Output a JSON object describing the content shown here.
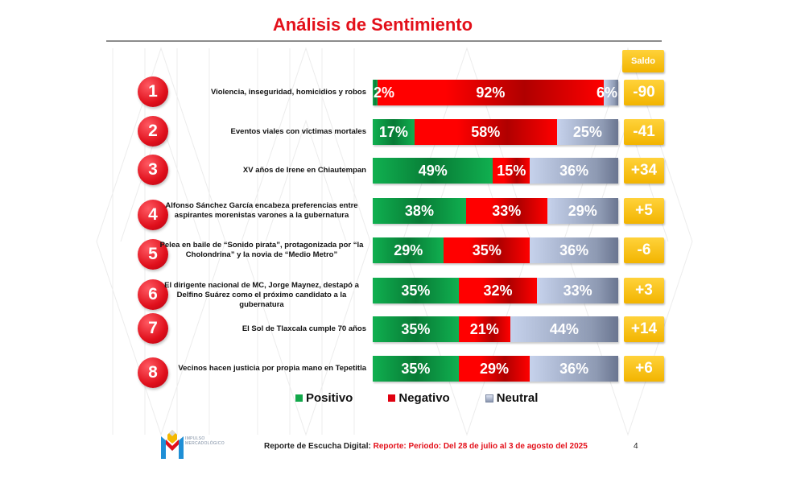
{
  "title": "Análisis de Sentimiento",
  "saldo_header": "Saldo",
  "colors": {
    "positive": "#10b050",
    "negative": "#ff0000",
    "neutral": "#aab5cf",
    "saldo": "#f5b800",
    "title": "#e3101a"
  },
  "chart_data": {
    "type": "bar",
    "subtype": "stacked-horizontal-100",
    "title": "Análisis de Sentimiento",
    "categories": [
      "Violencia, inseguridad, homicidios y robos",
      "Eventos viales con victimas mortales",
      "XV años de Irene en Chiautempan",
      "Alfonso Sánchez García encabeza preferencias entre aspirantes morenistas varones a la gubernatura",
      "Pelea en baile de “Sonido pirata”, protagonizada por “la Cholondrina” y la novia de “Medio Metro”",
      "El dirigente nacional de MC, Jorge Maynez, destapó a Delfino Suárez como el próximo candidato a la gubernatura",
      "El Sol de Tlaxcala cumple 70 años",
      "Vecinos hacen justicia por propia mano en Tepetitla"
    ],
    "series": [
      {
        "name": "Positivo",
        "values": [
          2,
          17,
          49,
          38,
          29,
          35,
          35,
          35
        ]
      },
      {
        "name": "Negativo",
        "values": [
          92,
          58,
          15,
          33,
          35,
          32,
          21,
          29
        ]
      },
      {
        "name": "Neutral",
        "values": [
          6,
          25,
          36,
          29,
          36,
          33,
          44,
          36
        ]
      }
    ],
    "saldo": [
      "-90",
      "-41",
      "+34",
      "+5",
      "-6",
      "+3",
      "+14",
      "+6"
    ],
    "xlim": [
      0,
      100
    ],
    "legend": "bottom",
    "grid": false
  },
  "rows": [
    {
      "rank": "1",
      "label_lines": [
        "Violencia, inseguridad, homicidios y robos"
      ],
      "pos": "2%",
      "neg": "92%",
      "neu": "6%",
      "saldo": "-90"
    },
    {
      "rank": "2",
      "label_lines": [
        "Eventos viales con victimas mortales"
      ],
      "pos": "17%",
      "neg": "58%",
      "neu": "25%",
      "saldo": "-41"
    },
    {
      "rank": "3",
      "label_lines": [
        "XV años de Irene en Chiautempan"
      ],
      "pos": "49%",
      "neg": "15%",
      "neu": "36%",
      "saldo": "+34"
    },
    {
      "rank": "4",
      "label_lines": [
        "Alfonso Sánchez García encabeza preferencias entre",
        "aspirantes morenistas varones a la gubernatura"
      ],
      "pos": "38%",
      "neg": "33%",
      "neu": "29%",
      "saldo": "+5"
    },
    {
      "rank": "5",
      "label_lines": [
        "Pelea en baile de “Sonido pirata”, protagonizada por “la",
        "Cholondrina” y la novia de “Medio Metro”"
      ],
      "pos": "29%",
      "neg": "35%",
      "neu": "36%",
      "saldo": "-6"
    },
    {
      "rank": "6",
      "label_lines": [
        "El dirigente nacional de MC, Jorge Maynez, destapó a",
        "Delfino Suárez como el próximo candidato a la gubernatura"
      ],
      "pos": "35%",
      "neg": "32%",
      "neu": "33%",
      "saldo": "+3"
    },
    {
      "rank": "7",
      "label_lines": [
        "El Sol de Tlaxcala cumple 70 años"
      ],
      "pos": "35%",
      "neg": "21%",
      "neu": "44%",
      "saldo": "+14"
    },
    {
      "rank": "8",
      "label_lines": [
        "Vecinos hacen justicia por propia mano en Tepetitla"
      ],
      "pos": "35%",
      "neg": "29%",
      "neu": "36%",
      "saldo": "+6"
    }
  ],
  "legend": {
    "positive": "Positivo",
    "negative": "Negativo",
    "neutral": "Neutral"
  },
  "footer": {
    "report_label": "Reporte de Escucha Digital:",
    "period": "Reporte: Periodo: Del 28 de julio al 3 de agosto del 2025",
    "page_number": "4",
    "logo_line1": "IMPULSO",
    "logo_line2": "MERCADOLÓGICO"
  }
}
